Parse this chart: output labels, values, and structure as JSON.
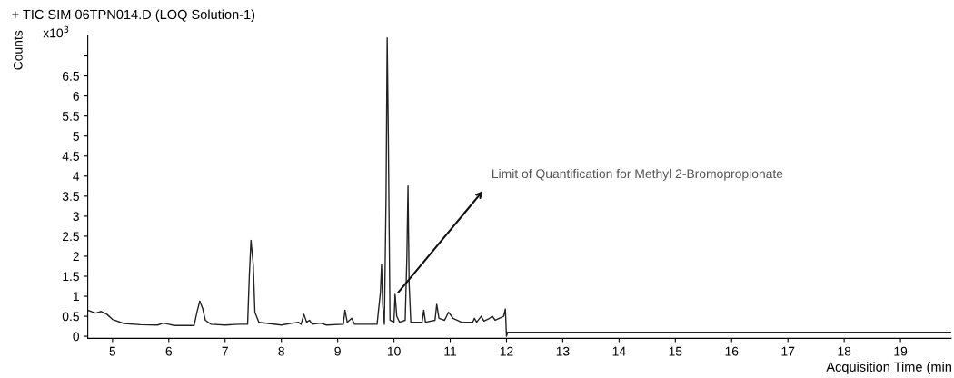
{
  "chart_data": {
    "type": "line",
    "title": "+ TIC SIM 06TPN014.D (LOQ Solution-1)",
    "subtitle": "x10$^{3}$",
    "ylabel": "Counts",
    "xlabel": "Acquisition Time (min",
    "x": [
      4.56,
      4.7,
      4.8,
      4.9,
      5.0,
      5.2,
      5.5,
      5.8,
      5.9,
      6.0,
      6.1,
      6.45,
      6.5,
      6.55,
      6.6,
      6.65,
      6.75,
      7.0,
      7.25,
      7.4,
      7.43,
      7.46,
      7.5,
      7.53,
      7.6,
      8.0,
      8.2,
      8.3,
      8.35,
      8.4,
      8.45,
      8.5,
      8.55,
      8.7,
      8.8,
      9.1,
      9.13,
      9.17,
      9.25,
      9.3,
      9.7,
      9.76,
      9.78,
      9.8,
      9.83,
      9.86,
      9.88,
      9.9,
      9.93,
      10.0,
      10.02,
      10.05,
      10.1,
      10.2,
      10.23,
      10.25,
      10.27,
      10.3,
      10.5,
      10.53,
      10.56,
      10.73,
      10.76,
      10.8,
      10.9,
      10.97,
      11.05,
      11.2,
      11.4,
      11.43,
      11.47,
      11.55,
      11.6,
      11.7,
      11.75,
      11.8,
      11.95,
      11.98,
      12.0,
      12.02,
      19.9
    ],
    "series": [
      {
        "color": "#222222",
        "values": [
          0.65,
          0.58,
          0.62,
          0.55,
          0.42,
          0.32,
          0.29,
          0.28,
          0.33,
          0.3,
          0.27,
          0.27,
          0.6,
          0.88,
          0.7,
          0.4,
          0.3,
          0.28,
          0.3,
          0.3,
          1.5,
          2.4,
          1.8,
          0.6,
          0.35,
          0.28,
          0.33,
          0.35,
          0.3,
          0.55,
          0.35,
          0.4,
          0.3,
          0.33,
          0.28,
          0.3,
          0.65,
          0.35,
          0.45,
          0.3,
          0.3,
          1.1,
          1.8,
          0.8,
          0.3,
          3.5,
          7.45,
          5.0,
          0.4,
          0.35,
          1.05,
          0.5,
          0.35,
          0.4,
          2.0,
          3.75,
          1.3,
          0.35,
          0.35,
          0.65,
          0.35,
          0.4,
          0.8,
          0.45,
          0.4,
          0.6,
          0.45,
          0.35,
          0.35,
          0.45,
          0.35,
          0.5,
          0.38,
          0.45,
          0.5,
          0.4,
          0.5,
          0.68,
          0.0,
          0.1,
          0.1
        ]
      }
    ],
    "xlim": [
      4.56,
      19.9
    ],
    "ylim": [
      -0.05,
      7.5
    ],
    "xticks": [
      5,
      6,
      7,
      8,
      9,
      10,
      11,
      12,
      13,
      14,
      15,
      16,
      17,
      18,
      19
    ],
    "yticks": [
      0,
      0.5,
      1,
      1.5,
      2,
      2.5,
      3,
      3.5,
      4,
      4.5,
      5,
      5.5,
      6,
      6.5,
      {
        "value": 7,
        "label": null
      }
    ],
    "annotations": [
      {
        "text": "Limit of Quantification for Methyl 2-Bromopropionate",
        "x": 10.05,
        "y": 1.05
      }
    ],
    "grid": false,
    "legend": false
  }
}
